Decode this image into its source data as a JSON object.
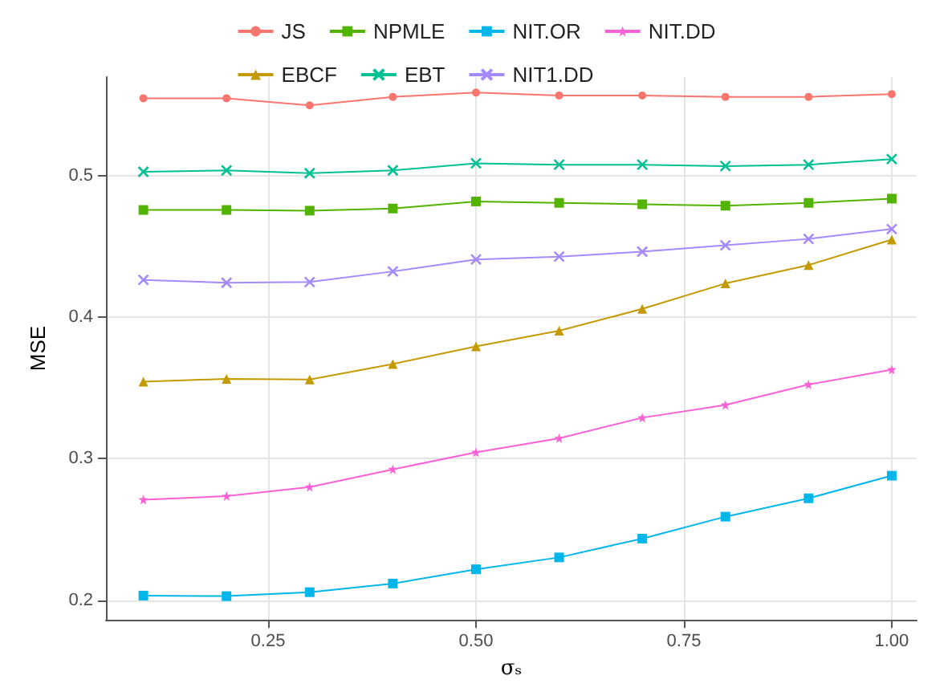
{
  "chart_data": {
    "type": "line",
    "xlabel": "σₛ",
    "ylabel": "MSE",
    "x": [
      0.1,
      0.2,
      0.3,
      0.4,
      0.5,
      0.6,
      0.7,
      0.8,
      0.9,
      1.0
    ],
    "xlim": [
      0.055,
      1.03
    ],
    "xticks": [
      {
        "value": 0.25,
        "label": "0.25"
      },
      {
        "value": 0.5,
        "label": "0.50"
      },
      {
        "value": 0.75,
        "label": "0.75"
      },
      {
        "value": 1.0,
        "label": "1.00"
      }
    ],
    "ylim": [
      0.186,
      0.57
    ],
    "yticks": [
      0.2,
      0.3,
      0.4,
      0.5
    ],
    "grid": true,
    "legend": "top",
    "series": [
      {
        "name": "JS",
        "color": "#f8766d",
        "marker": "circle",
        "values": [
          0.555,
          0.555,
          0.55,
          0.556,
          0.559,
          0.557,
          0.557,
          0.556,
          0.556,
          0.558
        ]
      },
      {
        "name": "EBCF",
        "color": "#c49a00",
        "marker": "triangle",
        "values": [
          0.3545,
          0.3565,
          0.356,
          0.367,
          0.3795,
          0.3905,
          0.406,
          0.424,
          0.437,
          0.455
        ]
      },
      {
        "name": "NPMLE",
        "color": "#53b400",
        "marker": "square",
        "values": [
          0.476,
          0.476,
          0.4755,
          0.477,
          0.482,
          0.481,
          0.48,
          0.479,
          0.481,
          0.484
        ]
      },
      {
        "name": "EBT",
        "color": "#00c094",
        "marker": "cross",
        "values": [
          0.503,
          0.504,
          0.502,
          0.504,
          0.509,
          0.508,
          0.508,
          0.507,
          0.508,
          0.512
        ]
      },
      {
        "name": "NIT.OR",
        "color": "#00b6eb",
        "marker": "square",
        "values": [
          0.2032,
          0.2028,
          0.2056,
          0.2117,
          0.2218,
          0.2302,
          0.2435,
          0.259,
          0.272,
          0.288
        ]
      },
      {
        "name": "NIT1.DD",
        "color": "#a58aff",
        "marker": "cross",
        "values": [
          0.4265,
          0.4245,
          0.425,
          0.4325,
          0.441,
          0.443,
          0.4465,
          0.451,
          0.4555,
          0.4625
        ]
      },
      {
        "name": "NIT.DD",
        "color": "#fb61d7",
        "marker": "star",
        "values": [
          0.271,
          0.2735,
          0.28,
          0.2925,
          0.3045,
          0.3145,
          0.329,
          0.338,
          0.3525,
          0.363
        ]
      }
    ]
  }
}
